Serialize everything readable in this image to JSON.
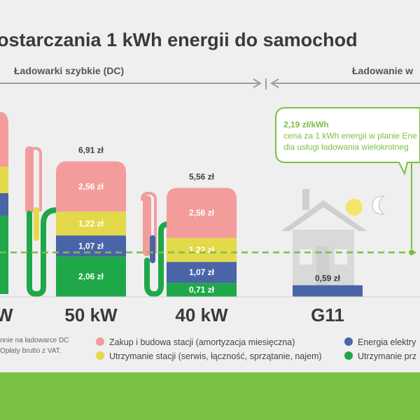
{
  "title": "ostarczania 1 kWh energii do samochod",
  "sections": {
    "dc": "Ładowarki szybkie (DC)",
    "ac": "Ładowanie w"
  },
  "callout": {
    "line1": "2,19 zł/kWh",
    "line2": "cena za 1 kWh energii w planie Ene",
    "line3": "dla usługi ładowania wielokrotneg"
  },
  "note": {
    "line1": "nnie na ładowarce DC",
    "line2": "Opłaty brutto z VAT."
  },
  "partial_category": "W",
  "legend": [
    {
      "label": "Zakup i budowa stacji (amortyzacja miesięczna)",
      "color": "#f39c9c"
    },
    {
      "label": "Utrzymanie stacji (serwis, łączność, sprzątanie, najem)",
      "color": "#e3d94a"
    },
    {
      "label": "Energia elektry",
      "color": "#4a64a8"
    },
    {
      "label": "Utrzymanie prz",
      "color": "#1fa84a"
    }
  ],
  "chart_data": {
    "type": "bar",
    "stacked": true,
    "categories": [
      "50 kW",
      "40 kW",
      "G11"
    ],
    "series": [
      {
        "name": "Utrzymanie prz",
        "color": "#1fa84a",
        "values": [
          2.06,
          0.71,
          null
        ]
      },
      {
        "name": "Energia elektry",
        "color": "#4a64a8",
        "values": [
          1.07,
          1.07,
          0.59
        ]
      },
      {
        "name": "Utrzymanie stacji (serwis, łączność, sprzątanie, najem)",
        "color": "#e3d94a",
        "values": [
          1.22,
          1.22,
          null
        ]
      },
      {
        "name": "Zakup i budowa stacji (amortyzacja miesięczna)",
        "color": "#f39c9c",
        "values": [
          2.56,
          2.56,
          null
        ]
      }
    ],
    "value_labels": [
      [
        "2,06 zł",
        "1,07 zł",
        "1,22 zł",
        "2,56 zł"
      ],
      [
        "0,71 zł",
        "1,07 zł",
        "1,22 zł",
        "2,56 zł"
      ],
      [
        null,
        "0,59 zł",
        null,
        null
      ]
    ],
    "totals": [
      "6,91 zł",
      "5,56 zł",
      null
    ],
    "reference_line": {
      "value": 2.19,
      "label": "2,19 zł/kWh"
    },
    "legend_position": "bottom",
    "grid": false,
    "xlabel": "",
    "ylabel": ""
  }
}
